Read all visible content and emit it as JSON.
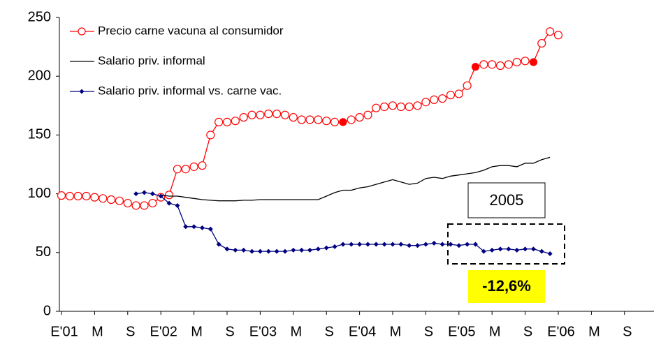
{
  "chart_data": {
    "type": "line",
    "categories": [
      "E'01",
      null,
      null,
      null,
      "M",
      null,
      null,
      null,
      "S",
      null,
      null,
      null,
      "E'02",
      null,
      null,
      null,
      "M",
      null,
      null,
      null,
      "S",
      null,
      null,
      null,
      "E'03",
      null,
      null,
      null,
      "M",
      null,
      null,
      null,
      "S",
      null,
      null,
      null,
      "E'04",
      null,
      null,
      null,
      "M",
      null,
      null,
      null,
      "S",
      null,
      null,
      null,
      "E'05",
      null,
      null,
      null,
      "M",
      null,
      null,
      null,
      "S",
      null,
      null,
      null,
      "E'06",
      null,
      null,
      null,
      "M",
      null,
      null,
      null,
      "S",
      null,
      null,
      null
    ],
    "series": [
      {
        "name": "Precio carne vacuna al consumidor",
        "color": "#ff0000",
        "marker": "circle",
        "highlight_points": [
          34,
          50,
          57
        ],
        "values": [
          98.5,
          98,
          98,
          98,
          97,
          96,
          95,
          94,
          92,
          90,
          90,
          92,
          97,
          99,
          121,
          121,
          123,
          124,
          150,
          161,
          161,
          162,
          165,
          167,
          167,
          168,
          168,
          167,
          165,
          163,
          163,
          163,
          162,
          161,
          161,
          163,
          165,
          167,
          173,
          174,
          175,
          174,
          174,
          175,
          178,
          180,
          181,
          184,
          185,
          192,
          208,
          210,
          210,
          209,
          210,
          212,
          213,
          212,
          228,
          238,
          235,
          null,
          null,
          null,
          null,
          null,
          null,
          null,
          null,
          null,
          null,
          null
        ]
      },
      {
        "name": "Salario priv. informal",
        "color": "#000000",
        "marker": "none",
        "values": [
          null,
          null,
          null,
          null,
          null,
          null,
          null,
          null,
          null,
          null,
          null,
          null,
          99,
          98,
          98,
          97,
          96,
          95,
          94.5,
          94,
          94,
          94,
          94.5,
          94.5,
          95,
          95,
          95,
          95,
          95,
          95,
          95,
          95,
          98,
          101,
          103,
          103,
          105,
          106,
          108,
          110,
          112,
          110,
          108,
          109,
          113,
          114,
          113,
          115,
          116,
          117,
          118,
          120,
          123,
          124,
          124,
          123,
          126,
          126,
          129,
          131,
          null,
          null,
          null,
          null,
          null,
          null,
          null,
          null,
          null,
          null,
          null,
          null
        ]
      },
      {
        "name": "Salario priv. informal vs. carne vac.",
        "color": "#000080",
        "marker": "diamond",
        "values": [
          null,
          null,
          null,
          null,
          null,
          null,
          null,
          null,
          null,
          100,
          101,
          100,
          98,
          92,
          90,
          72,
          72,
          71,
          70,
          57,
          53,
          52,
          52,
          51,
          51,
          51,
          51,
          51,
          52,
          52,
          52,
          53,
          54,
          55,
          57,
          57,
          57,
          57,
          57,
          57,
          57,
          57,
          56,
          56,
          57,
          58,
          57,
          57,
          56,
          57,
          57,
          51,
          52,
          53,
          53,
          52,
          53,
          53,
          51,
          49,
          null,
          null,
          null,
          null,
          null,
          null,
          null,
          null,
          null,
          null,
          null,
          null
        ]
      }
    ],
    "ylim": [
      0,
      250
    ],
    "yticks": [
      0,
      50,
      100,
      150,
      200,
      250
    ],
    "grid": false,
    "legend": "upper left",
    "annotations": [
      "2005",
      "-12,6%"
    ]
  }
}
